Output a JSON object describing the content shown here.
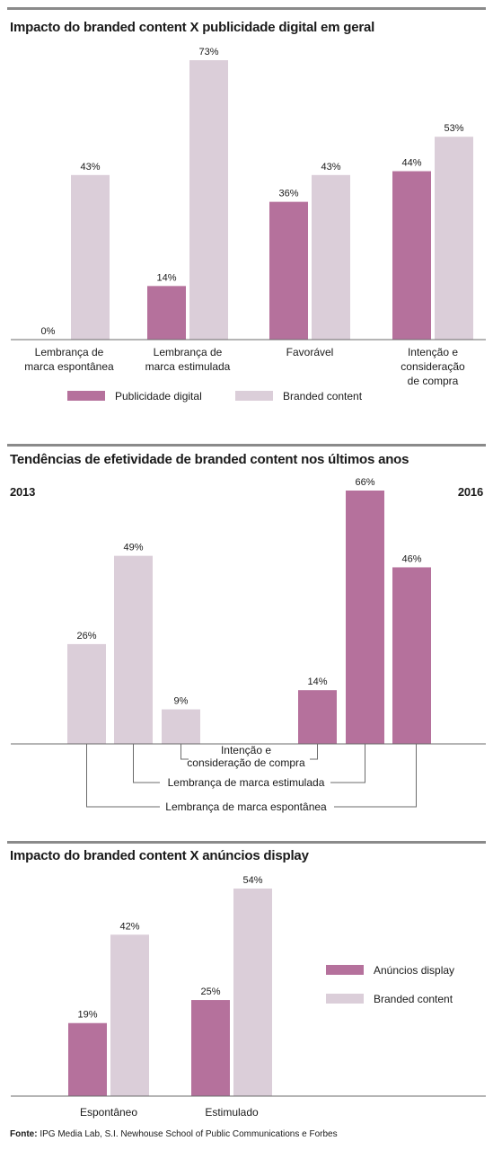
{
  "colors": {
    "digital": "#b5719c",
    "branded": "#dbced9",
    "axis": "#6b6b6b"
  },
  "chart_data": [
    {
      "type": "bar",
      "title": "Impacto do branded content X publicidade digital em geral",
      "categories": [
        [
          "Lembrança de",
          "marca espontânea"
        ],
        [
          "Lembrança de",
          "marca estimulada"
        ],
        [
          "Favorável"
        ],
        [
          "Intenção e",
          "consideração",
          "de compra"
        ]
      ],
      "series": [
        {
          "name": "Publicidade digital",
          "color": "#b5719c",
          "values": [
            0,
            14,
            36,
            44
          ],
          "labels": [
            "0%",
            "14%",
            "36%",
            "44%"
          ]
        },
        {
          "name": "Branded content",
          "color": "#dbced9",
          "values": [
            43,
            73,
            43,
            53
          ],
          "labels": [
            "43%",
            "73%",
            "43%",
            "53%"
          ]
        }
      ],
      "ylim": [
        0,
        73
      ],
      "grid": false,
      "legend": "bottom"
    },
    {
      "type": "bar",
      "title": "Tendências de efetividade de branded content nos últimos anos",
      "left_label": "2013",
      "right_label": "2016",
      "bars_2013": [
        {
          "value": 26,
          "label": "26%"
        },
        {
          "value": 49,
          "label": "49%"
        },
        {
          "value": 9,
          "label": "9%"
        }
      ],
      "bars_2016": [
        {
          "value": 14,
          "label": "14%"
        },
        {
          "value": 66,
          "label": "66%"
        },
        {
          "value": 46,
          "label": "46%"
        }
      ],
      "brackets": [
        [
          "Intenção e",
          "consideração de compra"
        ],
        [
          "Lembrança de marca estimulada"
        ],
        [
          "Lembrança de marca espontânea"
        ]
      ],
      "ylim": [
        0,
        66
      ],
      "grid": false
    },
    {
      "type": "bar",
      "title": "Impacto do branded content X anúncios display",
      "categories": [
        "Espontâneo",
        "Estimulado"
      ],
      "series": [
        {
          "name": "Anúncios display",
          "color": "#b5719c",
          "values": [
            19,
            25
          ],
          "labels": [
            "19%",
            "25%"
          ]
        },
        {
          "name": "Branded content",
          "color": "#dbced9",
          "values": [
            42,
            54
          ],
          "labels": [
            "42%",
            "54%"
          ]
        }
      ],
      "ylim": [
        0,
        54
      ],
      "grid": false,
      "legend": "right"
    }
  ],
  "footer": {
    "label": "Fonte:",
    "text": " IPG Media Lab, S.I. Newhouse School of Public Communications e Forbes"
  }
}
